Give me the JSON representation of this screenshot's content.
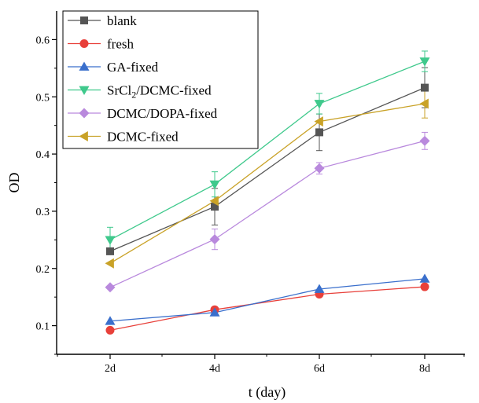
{
  "chart_data": {
    "type": "line",
    "xlabel": "t (day)",
    "ylabel": "OD",
    "categories": [
      "2d",
      "4d",
      "6d",
      "8d"
    ],
    "ylim": [
      0.05,
      0.65
    ],
    "yticks": [
      "0.1",
      "0.2",
      "0.3",
      "0.4",
      "0.5",
      "0.6"
    ],
    "legend_position": "top-left",
    "grid": false,
    "series": [
      {
        "name": "blank",
        "marker": "square",
        "color": "#555555",
        "values": [
          0.23,
          0.308,
          0.438,
          0.516
        ],
        "errors": [
          0.0,
          0.032,
          0.032,
          0.035
        ]
      },
      {
        "name": "fresh",
        "marker": "circle",
        "color": "#e8403a",
        "values": [
          0.092,
          0.128,
          0.155,
          0.168
        ],
        "errors": [
          0.0,
          0.0,
          0.0,
          0.0
        ]
      },
      {
        "name": "GA-fixed",
        "marker": "triangle-up",
        "color": "#3a6fcc",
        "values": [
          0.108,
          0.123,
          0.164,
          0.182
        ],
        "errors": [
          0.0,
          0.0,
          0.0,
          0.0
        ]
      },
      {
        "name": "SrCl2/DCMC-fixed",
        "name_main": "SrCl",
        "name_sub": "2",
        "name_rest": "/DCMC-fixed",
        "marker": "triangle-down",
        "color": "#3fc98c",
        "values": [
          0.25,
          0.347,
          0.488,
          0.562
        ],
        "errors": [
          0.022,
          0.022,
          0.018,
          0.018
        ]
      },
      {
        "name": "DCMC/DOPA-fixed",
        "marker": "diamond",
        "color": "#b989dd",
        "values": [
          0.167,
          0.251,
          0.375,
          0.423
        ],
        "errors": [
          0.0,
          0.018,
          0.01,
          0.015
        ]
      },
      {
        "name": "DCMC-fixed",
        "marker": "triangle-left",
        "color": "#c9a227",
        "values": [
          0.209,
          0.318,
          0.457,
          0.488
        ],
        "errors": [
          0.0,
          0.0,
          0.0,
          0.025
        ]
      }
    ]
  }
}
